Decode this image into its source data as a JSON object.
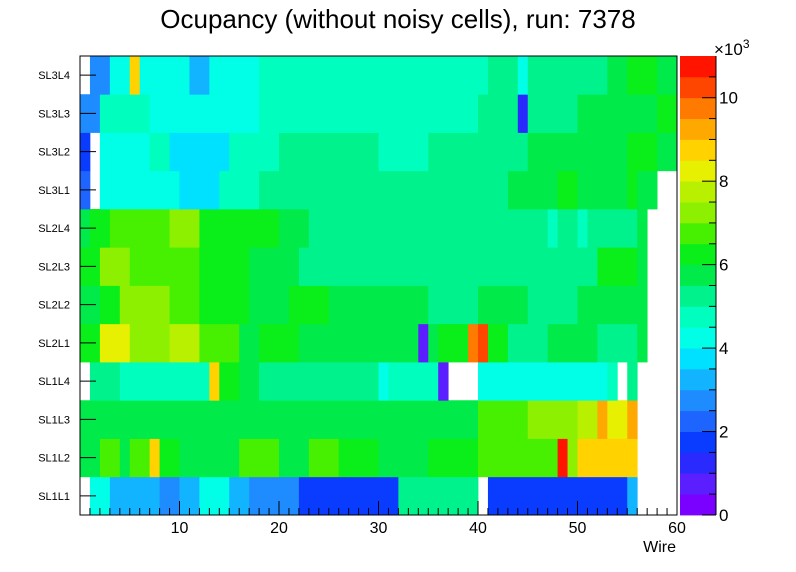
{
  "chart_data": {
    "type": "heatmap",
    "title": "Ocupancy (without noisy cells), run: 7378",
    "xlabel": "Wire",
    "ylabel": "",
    "xlim": [
      0,
      60
    ],
    "x_ticks": [
      "10",
      "20",
      "30",
      "40",
      "50",
      "60"
    ],
    "x_tick_values": [
      10,
      20,
      30,
      40,
      50,
      60
    ],
    "y_labels": [
      "SL1L1",
      "SL1L2",
      "SL1L3",
      "SL1L4",
      "SL2L1",
      "SL2L2",
      "SL2L3",
      "SL2L4",
      "SL3L1",
      "SL3L2",
      "SL3L3",
      "SL3L4"
    ],
    "zlim": [
      0,
      11000
    ],
    "z_multiplier": "×10",
    "z_multiplier_exp": "3",
    "z_ticks": [
      "0",
      "2",
      "4",
      "6",
      "8",
      "10"
    ],
    "z_tick_values": [
      0,
      2,
      4,
      6,
      8,
      10
    ],
    "palette": [
      "#7a00ff",
      "#5a1eff",
      "#2a2aff",
      "#0a3cff",
      "#1e64ff",
      "#1e8cff",
      "#12b4ff",
      "#00e1ff",
      "#00ffe6",
      "#00ffbe",
      "#00f28c",
      "#00ea4a",
      "#0aee1a",
      "#46f000",
      "#8cf000",
      "#b8f000",
      "#e6f000",
      "#ffd200",
      "#ffa800",
      "#ff7a00",
      "#ff4600",
      "#ff1400"
    ],
    "rows": [
      {
        "layer": "SL1L1",
        "segments": [
          [
            1,
            3,
            4.3
          ],
          [
            3,
            8,
            3.0
          ],
          [
            8,
            10,
            2.8
          ],
          [
            10,
            12,
            3.1
          ],
          [
            12,
            15,
            4.0
          ],
          [
            15,
            17,
            3.2
          ],
          [
            17,
            22,
            2.6
          ],
          [
            22,
            32,
            1.7
          ],
          [
            32,
            40,
            5.4
          ],
          [
            40,
            41,
            null
          ],
          [
            41,
            45,
            1.7
          ],
          [
            45,
            46,
            1.5
          ],
          [
            46,
            55,
            1.7
          ],
          [
            55,
            56,
            3.2
          ],
          [
            56,
            60,
            null
          ]
        ]
      },
      {
        "layer": "SL1L2",
        "segments": [
          [
            0,
            2,
            5.8
          ],
          [
            2,
            4,
            6.8
          ],
          [
            4,
            5,
            5.8
          ],
          [
            5,
            7,
            6.8
          ],
          [
            7,
            8,
            8.6
          ],
          [
            8,
            10,
            6.4
          ],
          [
            10,
            16,
            5.8
          ],
          [
            16,
            20,
            6.5
          ],
          [
            20,
            23,
            5.8
          ],
          [
            23,
            26,
            6.5
          ],
          [
            26,
            30,
            6.0
          ],
          [
            30,
            35,
            5.8
          ],
          [
            35,
            40,
            6.3
          ],
          [
            40,
            48,
            6.7
          ],
          [
            48,
            49,
            10.8
          ],
          [
            49,
            50,
            7.0
          ],
          [
            50,
            56,
            8.6
          ],
          [
            56,
            60,
            null
          ]
        ]
      },
      {
        "layer": "SL1L3",
        "segments": [
          [
            0,
            6,
            5.8
          ],
          [
            6,
            10,
            5.6
          ],
          [
            10,
            14,
            5.9
          ],
          [
            14,
            20,
            5.6
          ],
          [
            20,
            30,
            5.7
          ],
          [
            30,
            40,
            5.6
          ],
          [
            40,
            45,
            6.5
          ],
          [
            45,
            50,
            7.0
          ],
          [
            50,
            52,
            7.8
          ],
          [
            52,
            53,
            9.2
          ],
          [
            53,
            55,
            8.2
          ],
          [
            55,
            56,
            9.2
          ],
          [
            56,
            60,
            null
          ]
        ]
      },
      {
        "layer": "SL1L4",
        "segments": [
          [
            0,
            1,
            null
          ],
          [
            1,
            4,
            5.0
          ],
          [
            4,
            8,
            4.6
          ],
          [
            8,
            10,
            4.9
          ],
          [
            10,
            12,
            4.8
          ],
          [
            12,
            13,
            4.7
          ],
          [
            13,
            14,
            8.6
          ],
          [
            14,
            16,
            6.3
          ],
          [
            16,
            18,
            5.6
          ],
          [
            18,
            30,
            5.0
          ],
          [
            30,
            31,
            4.2
          ],
          [
            31,
            36,
            4.7
          ],
          [
            36,
            37,
            0.9
          ],
          [
            37,
            40,
            null
          ],
          [
            40,
            50,
            4.2
          ],
          [
            50,
            52,
            4.0
          ],
          [
            52,
            53,
            4.3
          ],
          [
            53,
            54,
            4.6
          ],
          [
            54,
            55,
            null
          ],
          [
            55,
            56,
            5.0
          ],
          [
            56,
            60,
            null
          ]
        ]
      },
      {
        "layer": "SL2L1",
        "segments": [
          [
            0,
            2,
            6.2
          ],
          [
            2,
            5,
            8.4
          ],
          [
            5,
            9,
            7.2
          ],
          [
            9,
            12,
            7.6
          ],
          [
            12,
            16,
            6.5
          ],
          [
            16,
            18,
            5.9
          ],
          [
            18,
            22,
            6.0
          ],
          [
            22,
            34,
            5.8
          ],
          [
            34,
            35,
            0.9
          ],
          [
            35,
            36,
            5.6
          ],
          [
            36,
            39,
            6.0
          ],
          [
            39,
            40,
            9.7
          ],
          [
            40,
            41,
            10.2
          ],
          [
            41,
            43,
            6.3
          ],
          [
            43,
            47,
            5.4
          ],
          [
            47,
            52,
            5.6
          ],
          [
            52,
            56,
            5.2
          ],
          [
            56,
            57,
            5.8
          ],
          [
            57,
            60,
            null
          ]
        ]
      },
      {
        "layer": "SL2L2",
        "segments": [
          [
            0,
            2,
            5.9
          ],
          [
            2,
            4,
            6.4
          ],
          [
            4,
            9,
            7.5
          ],
          [
            9,
            12,
            6.8
          ],
          [
            12,
            14,
            6.2
          ],
          [
            14,
            17,
            6.0
          ],
          [
            17,
            21,
            5.8
          ],
          [
            21,
            25,
            6.3
          ],
          [
            25,
            35,
            5.6
          ],
          [
            35,
            40,
            5.3
          ],
          [
            40,
            45,
            5.5
          ],
          [
            45,
            50,
            5.3
          ],
          [
            50,
            52,
            5.9
          ],
          [
            52,
            57,
            5.5
          ],
          [
            57,
            60,
            null
          ]
        ]
      },
      {
        "layer": "SL2L3",
        "segments": [
          [
            0,
            2,
            6.1
          ],
          [
            2,
            5,
            7.3
          ],
          [
            5,
            9,
            6.6
          ],
          [
            9,
            12,
            6.9
          ],
          [
            12,
            17,
            6.3
          ],
          [
            17,
            22,
            5.9
          ],
          [
            22,
            30,
            5.4
          ],
          [
            30,
            40,
            5.2
          ],
          [
            40,
            45,
            5.4
          ],
          [
            45,
            52,
            5.2
          ],
          [
            52,
            56,
            6.0
          ],
          [
            56,
            57,
            5.5
          ],
          [
            57,
            60,
            null
          ]
        ]
      },
      {
        "layer": "SL2L4",
        "segments": [
          [
            0,
            1,
            5.6
          ],
          [
            1,
            3,
            6.0
          ],
          [
            3,
            5,
            6.6
          ],
          [
            5,
            9,
            6.8
          ],
          [
            9,
            12,
            7.0
          ],
          [
            12,
            16,
            6.4
          ],
          [
            16,
            20,
            6.0
          ],
          [
            20,
            23,
            5.6
          ],
          [
            23,
            30,
            5.2
          ],
          [
            30,
            40,
            5.0
          ],
          [
            40,
            47,
            5.1
          ],
          [
            47,
            48,
            4.6
          ],
          [
            48,
            50,
            5.0
          ],
          [
            50,
            51,
            4.6
          ],
          [
            51,
            56,
            5.1
          ],
          [
            56,
            57,
            5.6
          ],
          [
            57,
            60,
            null
          ]
        ]
      },
      {
        "layer": "SL3L1",
        "segments": [
          [
            0,
            1,
            2.4
          ],
          [
            1,
            2,
            null
          ],
          [
            2,
            7,
            4.2
          ],
          [
            7,
            10,
            4.0
          ],
          [
            10,
            14,
            3.8
          ],
          [
            14,
            18,
            4.7
          ],
          [
            18,
            22,
            5.4
          ],
          [
            22,
            26,
            5.0
          ],
          [
            26,
            30,
            5.2
          ],
          [
            30,
            40,
            5.0
          ],
          [
            40,
            43,
            5.4
          ],
          [
            43,
            48,
            5.6
          ],
          [
            48,
            50,
            6.0
          ],
          [
            50,
            55,
            5.6
          ],
          [
            55,
            56,
            6.0
          ],
          [
            56,
            58,
            5.6
          ],
          [
            58,
            60,
            null
          ]
        ]
      },
      {
        "layer": "SL3L2",
        "segments": [
          [
            0,
            1,
            1.6
          ],
          [
            1,
            2,
            null
          ],
          [
            2,
            7,
            4.4
          ],
          [
            7,
            9,
            4.6
          ],
          [
            9,
            15,
            3.8
          ],
          [
            15,
            20,
            4.8
          ],
          [
            20,
            25,
            5.2
          ],
          [
            25,
            30,
            5.0
          ],
          [
            30,
            35,
            4.8
          ],
          [
            35,
            40,
            5.2
          ],
          [
            40,
            45,
            5.4
          ],
          [
            45,
            50,
            5.8
          ],
          [
            50,
            55,
            5.6
          ],
          [
            55,
            58,
            6.0
          ],
          [
            58,
            60,
            5.8
          ]
        ]
      },
      {
        "layer": "SL3L3",
        "segments": [
          [
            0,
            2,
            2.8
          ],
          [
            2,
            7,
            4.6
          ],
          [
            7,
            14,
            4.0
          ],
          [
            14,
            18,
            4.4
          ],
          [
            18,
            25,
            4.9
          ],
          [
            25,
            30,
            4.8
          ],
          [
            30,
            36,
            4.6
          ],
          [
            36,
            40,
            4.8
          ],
          [
            40,
            44,
            5.0
          ],
          [
            44,
            45,
            1.4
          ],
          [
            45,
            50,
            5.4
          ],
          [
            50,
            58,
            5.6
          ],
          [
            58,
            60,
            6.0
          ]
        ]
      },
      {
        "layer": "SL3L4",
        "segments": [
          [
            0,
            1,
            null
          ],
          [
            1,
            3,
            2.6
          ],
          [
            3,
            5,
            4.2
          ],
          [
            5,
            6,
            8.6
          ],
          [
            6,
            11,
            4.0
          ],
          [
            11,
            13,
            3.0
          ],
          [
            13,
            18,
            4.3
          ],
          [
            18,
            30,
            4.7
          ],
          [
            30,
            41,
            4.6
          ],
          [
            41,
            44,
            5.2
          ],
          [
            44,
            45,
            4.2
          ],
          [
            45,
            51,
            5.2
          ],
          [
            51,
            53,
            5.4
          ],
          [
            53,
            55,
            5.8
          ],
          [
            55,
            58,
            6.0
          ],
          [
            58,
            60,
            5.8
          ]
        ]
      }
    ]
  }
}
